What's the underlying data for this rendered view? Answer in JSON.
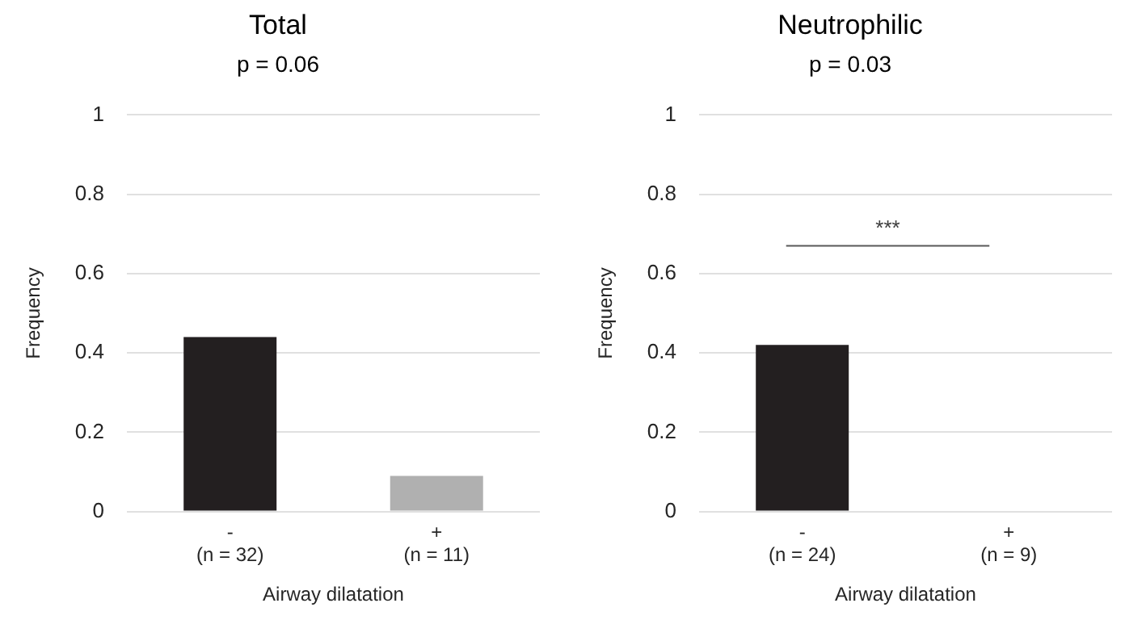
{
  "chart_data": [
    {
      "type": "bar",
      "title": "Total",
      "subtitle": "p = 0.06",
      "xlabel": "Airway dilatation",
      "ylabel": "Frequency",
      "categories": [
        "-\n(n = 32)",
        "+\n(n = 11)"
      ],
      "values": [
        0.44,
        0.09
      ],
      "colors": [
        "#231f20",
        "#b0b0b0"
      ],
      "ylim": [
        0,
        1
      ],
      "yticks": [
        0,
        0.2,
        0.4,
        0.6,
        0.8,
        1
      ],
      "grid": "y"
    },
    {
      "type": "bar",
      "title": "Neutrophilic",
      "subtitle": "p = 0.03",
      "xlabel": "Airway dilatation",
      "ylabel": "Frequency",
      "categories": [
        "-\n(n = 24)",
        "+\n(n = 9)"
      ],
      "values": [
        0.42,
        0
      ],
      "colors": [
        "#231f20",
        "#231f20"
      ],
      "ylim": [
        0,
        1
      ],
      "yticks": [
        0,
        0.2,
        0.4,
        0.6,
        0.8,
        1
      ],
      "grid": "y",
      "annotations": [
        "***"
      ]
    }
  ]
}
